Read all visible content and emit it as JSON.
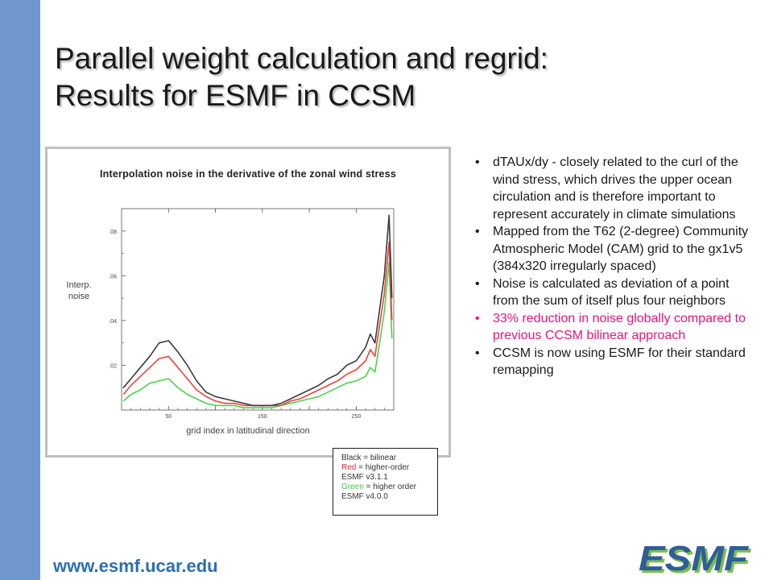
{
  "title": {
    "line1": "Parallel weight calculation and regrid:",
    "line2": "Results for ESMF in CCSM"
  },
  "chart_data": {
    "type": "line",
    "title": "Interpolation  noise in the derivative of the zonal wind stress",
    "ylabel_line1": "Interp.",
    "ylabel_line2": "noise",
    "xlabel": "grid index in latitudinal direction",
    "xlim": [
      0,
      290
    ],
    "ylim": [
      0,
      0.09
    ],
    "xticks": [
      50,
      100,
      150,
      200,
      250
    ],
    "xticklabels": [
      "50",
      "",
      "150",
      "",
      "250"
    ],
    "yticks": [
      0.02,
      0.04,
      0.06,
      0.08
    ],
    "yticklabels": [
      ".02",
      ".04",
      ".06",
      ".08"
    ],
    "x": [
      2,
      10,
      20,
      30,
      40,
      50,
      60,
      70,
      80,
      90,
      100,
      110,
      120,
      130,
      140,
      150,
      160,
      170,
      180,
      190,
      200,
      210,
      220,
      230,
      240,
      250,
      260,
      265,
      270,
      275,
      280,
      285,
      288
    ],
    "series": [
      {
        "color": "#3a3a3a",
        "values": [
          0.01,
          0.014,
          0.019,
          0.024,
          0.03,
          0.031,
          0.026,
          0.02,
          0.013,
          0.008,
          0.006,
          0.005,
          0.004,
          0.003,
          0.002,
          0.002,
          0.002,
          0.003,
          0.005,
          0.007,
          0.009,
          0.011,
          0.014,
          0.016,
          0.02,
          0.022,
          0.028,
          0.034,
          0.03,
          0.045,
          0.06,
          0.087,
          0.05
        ]
      },
      {
        "color": "#e8443c",
        "values": [
          0.007,
          0.011,
          0.015,
          0.019,
          0.023,
          0.024,
          0.019,
          0.014,
          0.009,
          0.006,
          0.004,
          0.003,
          0.003,
          0.002,
          0.002,
          0.002,
          0.002,
          0.002,
          0.004,
          0.005,
          0.007,
          0.009,
          0.011,
          0.013,
          0.016,
          0.018,
          0.022,
          0.027,
          0.024,
          0.038,
          0.052,
          0.075,
          0.04
        ]
      },
      {
        "color": "#4fd04f",
        "values": [
          0.004,
          0.007,
          0.009,
          0.012,
          0.013,
          0.014,
          0.01,
          0.007,
          0.005,
          0.003,
          0.002,
          0.002,
          0.002,
          0.001,
          0.001,
          0.001,
          0.001,
          0.002,
          0.003,
          0.004,
          0.005,
          0.006,
          0.008,
          0.01,
          0.012,
          0.013,
          0.015,
          0.019,
          0.017,
          0.03,
          0.044,
          0.066,
          0.032
        ]
      }
    ],
    "legend": {
      "black": "Black = bilinear",
      "red_word": "Red",
      "red_rest": " = higher-order",
      "red_line2": "ESMF v3.1.1",
      "green_word": "Green",
      "green_rest": " = higher order",
      "green_line2": "ESMF v4.0.0"
    }
  },
  "bullets": [
    "dTAUx/dy - closely related to the curl of the wind stress, which drives the upper ocean circulation and is therefore important to represent accurately in climate simulations",
    "Mapped from the T62 (2-degree) Community Atmospheric Model (CAM) grid to the gx1v5 (384x320 irregularly spaced)",
    "Noise is calculated as deviation of a point from the sum of itself plus four neighbors",
    "33% reduction in noise globally compared to previous CCSM bilinear approach",
    "CCSM is now using ESMF for their standard remapping"
  ],
  "footer_url": "www.esmf.ucar.edu",
  "logo_text": "ESMF",
  "colors": {
    "accent_bar": "#6f96cf",
    "highlight": "#e8147a",
    "url": "#2b6fb3",
    "logo_blue": "#2f5d9a",
    "logo_green": "#7cc04a"
  }
}
